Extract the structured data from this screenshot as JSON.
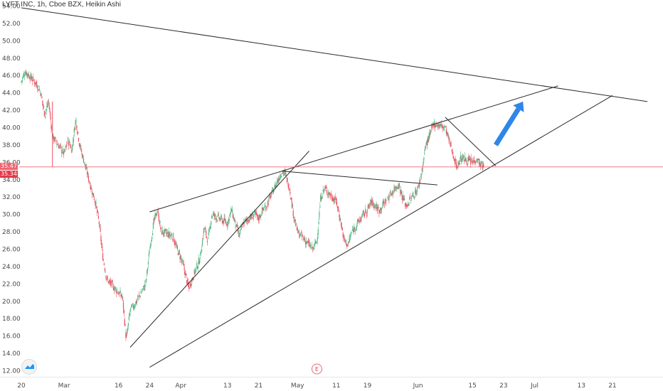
{
  "title": "LYFT INC, 1h, Cboe BZX, Heikin Ashi",
  "price_tags": {
    "upper": "35.47",
    "lower": "35.34"
  },
  "earnings_marker": "E",
  "logo_icon": "tradingview-logo-icon",
  "colors": {
    "up": "#53b987",
    "down": "#eb4d5c",
    "trendline": "#2a2a2a",
    "arrow": "#2f86e8",
    "price_line": "#f06471",
    "tag_red": "#f06471",
    "tag_dark_red": "#e23b4c"
  },
  "chart_data": {
    "type": "candlestick",
    "title": "LYFT INC, 1h, Cboe BZX, Heikin Ashi",
    "y_ticks": [
      "54.00",
      "52.00",
      "50.00",
      "48.00",
      "46.00",
      "44.00",
      "42.00",
      "40.00",
      "38.00",
      "36.00",
      "34.00",
      "32.00",
      "30.00",
      "28.00",
      "26.00",
      "24.00",
      "22.00",
      "20.00",
      "18.00",
      "16.00",
      "14.00",
      "12.00"
    ],
    "ylim": [
      11.3,
      54.7
    ],
    "x_labels": [
      {
        "label": "20",
        "date": "2020-02-20"
      },
      {
        "label": "Mar",
        "date": "2020-03-02"
      },
      {
        "label": "16",
        "date": "2020-03-16"
      },
      {
        "label": "24",
        "date": "2020-03-24"
      },
      {
        "label": "Apr",
        "date": "2020-04-01"
      },
      {
        "label": "13",
        "date": "2020-04-13"
      },
      {
        "label": "21",
        "date": "2020-04-21"
      },
      {
        "label": "May",
        "date": "2020-05-01"
      },
      {
        "label": "11",
        "date": "2020-05-11"
      },
      {
        "label": "19",
        "date": "2020-05-19"
      },
      {
        "label": "Jun",
        "date": "2020-06-01"
      },
      {
        "label": "15",
        "date": "2020-06-15"
      },
      {
        "label": "23",
        "date": "2020-06-23"
      },
      {
        "label": "Jul",
        "date": "2020-07-01"
      },
      {
        "label": "13",
        "date": "2020-07-13"
      },
      {
        "label": "21",
        "date": "2020-07-21"
      }
    ],
    "price_path": [
      [
        "2020-02-20",
        45.3
      ],
      [
        "2020-02-21",
        46.5
      ],
      [
        "2020-02-24",
        45.0
      ],
      [
        "2020-02-25",
        44.0
      ],
      [
        "2020-02-26",
        41.5
      ],
      [
        "2020-02-27",
        43.0
      ],
      [
        "2020-02-28",
        39.0
      ],
      [
        "2020-03-02",
        37.0
      ],
      [
        "2020-03-03",
        38.5
      ],
      [
        "2020-03-04",
        37.5
      ],
      [
        "2020-03-05",
        41.0
      ],
      [
        "2020-03-06",
        38.0
      ],
      [
        "2020-03-09",
        33.0
      ],
      [
        "2020-03-10",
        31.5
      ],
      [
        "2020-03-11",
        29.0
      ],
      [
        "2020-03-12",
        25.0
      ],
      [
        "2020-03-13",
        22.5
      ],
      [
        "2020-03-16",
        21.0
      ],
      [
        "2020-03-17",
        20.5
      ],
      [
        "2020-03-18",
        15.5
      ],
      [
        "2020-03-19",
        19.0
      ],
      [
        "2020-03-20",
        19.5
      ],
      [
        "2020-03-23",
        22.0
      ],
      [
        "2020-03-24",
        26.0
      ],
      [
        "2020-03-25",
        29.0
      ],
      [
        "2020-03-26",
        30.5
      ],
      [
        "2020-03-27",
        28.0
      ],
      [
        "2020-03-30",
        27.5
      ],
      [
        "2020-03-31",
        26.0
      ],
      [
        "2020-04-01",
        25.0
      ],
      [
        "2020-04-02",
        23.5
      ],
      [
        "2020-04-03",
        21.5
      ],
      [
        "2020-04-06",
        25.0
      ],
      [
        "2020-04-07",
        28.5
      ],
      [
        "2020-04-08",
        27.0
      ],
      [
        "2020-04-09",
        30.0
      ],
      [
        "2020-04-13",
        29.0
      ],
      [
        "2020-04-14",
        30.5
      ],
      [
        "2020-04-15",
        29.0
      ],
      [
        "2020-04-16",
        27.5
      ],
      [
        "2020-04-17",
        29.0
      ],
      [
        "2020-04-20",
        30.0
      ],
      [
        "2020-04-21",
        29.5
      ],
      [
        "2020-04-22",
        30.5
      ],
      [
        "2020-04-23",
        31.0
      ],
      [
        "2020-04-24",
        32.0
      ],
      [
        "2020-04-27",
        35.0
      ],
      [
        "2020-04-28",
        34.5
      ],
      [
        "2020-04-29",
        33.0
      ],
      [
        "2020-04-30",
        30.0
      ],
      [
        "2020-05-01",
        28.0
      ],
      [
        "2020-05-04",
        26.5
      ],
      [
        "2020-05-05",
        26.0
      ],
      [
        "2020-05-06",
        27.0
      ],
      [
        "2020-05-07",
        32.0
      ],
      [
        "2020-05-08",
        33.0
      ],
      [
        "2020-05-11",
        31.5
      ],
      [
        "2020-05-12",
        29.5
      ],
      [
        "2020-05-13",
        27.0
      ],
      [
        "2020-05-14",
        26.5
      ],
      [
        "2020-05-15",
        28.0
      ],
      [
        "2020-05-18",
        30.0
      ],
      [
        "2020-05-19",
        30.5
      ],
      [
        "2020-05-20",
        31.5
      ],
      [
        "2020-05-21",
        31.0
      ],
      [
        "2020-05-22",
        30.5
      ],
      [
        "2020-05-26",
        33.0
      ],
      [
        "2020-05-27",
        33.5
      ],
      [
        "2020-05-28",
        32.0
      ],
      [
        "2020-05-29",
        31.0
      ],
      [
        "2020-06-01",
        33.0
      ],
      [
        "2020-06-02",
        35.0
      ],
      [
        "2020-06-03",
        38.0
      ],
      [
        "2020-06-04",
        39.0
      ],
      [
        "2020-06-05",
        40.5
      ],
      [
        "2020-06-08",
        40.0
      ],
      [
        "2020-06-09",
        38.5
      ],
      [
        "2020-06-10",
        37.0
      ],
      [
        "2020-06-11",
        35.5
      ],
      [
        "2020-06-12",
        36.5
      ],
      [
        "2020-06-15",
        36.0
      ],
      [
        "2020-06-16",
        36.5
      ],
      [
        "2020-06-17",
        35.8
      ],
      [
        "2020-06-18",
        35.4
      ]
    ],
    "trendlines": [
      {
        "name": "upper-descending-resistance",
        "from": [
          "2020-02-20",
          53.8
        ],
        "to": [
          "2020-07-30",
          43.0
        ]
      },
      {
        "name": "upper-rising-resistance",
        "from": [
          "2020-03-24",
          30.3
        ],
        "to": [
          "2020-07-07",
          44.8
        ]
      },
      {
        "name": "lower-rising-support",
        "from": [
          "2020-03-24",
          12.4
        ],
        "to": [
          "2020-07-21",
          43.7
        ]
      },
      {
        "name": "inner-rising-support",
        "from": [
          "2020-03-19",
          14.7
        ],
        "to": [
          "2020-05-04",
          37.3
        ]
      },
      {
        "name": "horizontal-neckline",
        "from": [
          "2020-04-27",
          35.0
        ],
        "to": [
          "2020-06-06",
          33.4
        ]
      },
      {
        "name": "flag-upper",
        "from": [
          "2020-06-08",
          41.2
        ],
        "to": [
          "2020-06-21",
          35.6
        ]
      }
    ],
    "projection_arrow": {
      "from": [
        "2020-06-21",
        38.0
      ],
      "to": [
        "2020-06-28",
        43.0
      ]
    },
    "current_price": 35.47,
    "price_tags": [
      35.47,
      35.34
    ],
    "earnings_date": "2020-05-06"
  }
}
